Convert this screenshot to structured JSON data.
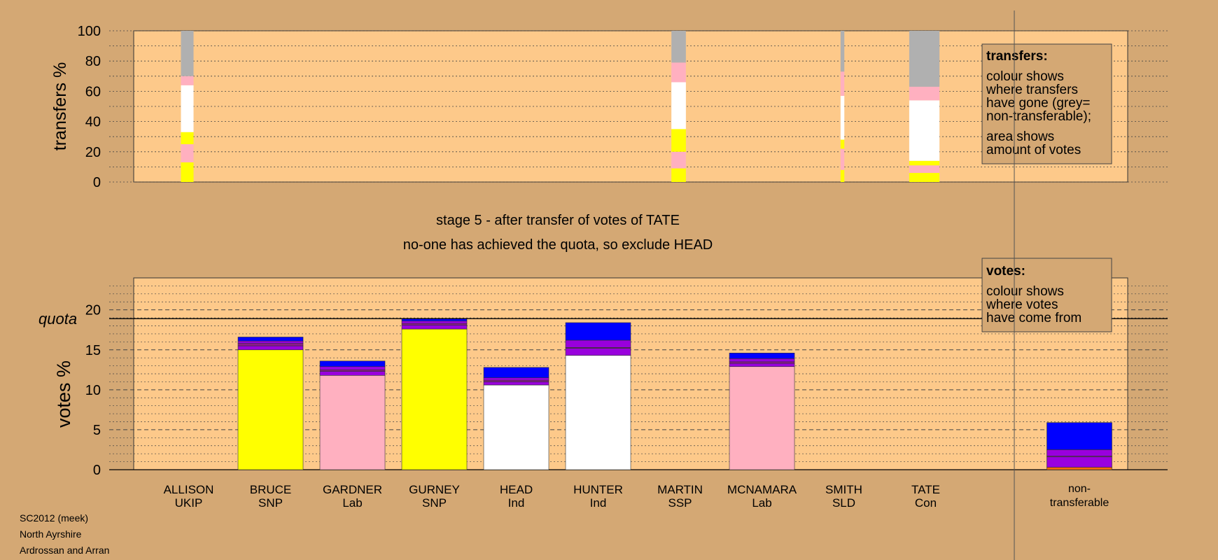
{
  "colors": {
    "page_bg": "#d4a874",
    "plot_bg": "#fdc98a",
    "SNP": "#ffff00",
    "Lab": "#ffb0c0",
    "Ind": "#ffffff",
    "UKIP": "#8a1c8a",
    "SSP": "#ff6a00",
    "SLD": "#ff7a30",
    "Con": "#0000ff",
    "misc_purple": "#9900dd",
    "non_transferable": "#b0b0b0"
  },
  "chart_data": [
    {
      "type": "bar",
      "subtype": "stacked",
      "ylabel": "transfers %",
      "ylim": [
        0,
        100
      ],
      "yticks": [
        0,
        20,
        40,
        60,
        80,
        100
      ],
      "note": "thin stacked columns showing where transferred votes went",
      "columns": [
        {
          "candidate": "ALLISON",
          "width_factor": 1.0,
          "segments": [
            {
              "value": 13,
              "color": "SNP"
            },
            {
              "value": 12,
              "color": "Lab"
            },
            {
              "value": 8,
              "color": "SNP"
            },
            {
              "value": 31,
              "color": "Ind"
            },
            {
              "value": 6,
              "color": "Lab"
            },
            {
              "value": 30,
              "color": "non_transferable"
            }
          ]
        },
        {
          "candidate": "MARTIN",
          "width_factor": 1.15,
          "segments": [
            {
              "value": 9,
              "color": "SNP"
            },
            {
              "value": 11,
              "color": "Lab"
            },
            {
              "value": 15,
              "color": "SNP"
            },
            {
              "value": 31,
              "color": "Ind"
            },
            {
              "value": 13,
              "color": "Lab"
            },
            {
              "value": 21,
              "color": "non_transferable"
            }
          ]
        },
        {
          "candidate": "SMITH",
          "width_factor": 0.3,
          "segments": [
            {
              "value": 8,
              "color": "SNP"
            },
            {
              "value": 14,
              "color": "Lab"
            },
            {
              "value": 6,
              "color": "SNP"
            },
            {
              "value": 29,
              "color": "Ind"
            },
            {
              "value": 16,
              "color": "Lab"
            },
            {
              "value": 27,
              "color": "non_transferable"
            }
          ]
        },
        {
          "candidate": "TATE",
          "width_factor": 2.4,
          "segments": [
            {
              "value": 6,
              "color": "SNP"
            },
            {
              "value": 5,
              "color": "Lab"
            },
            {
              "value": 3,
              "color": "SNP"
            },
            {
              "value": 40,
              "color": "Ind"
            },
            {
              "value": 9,
              "color": "Lab"
            },
            {
              "value": 37,
              "color": "non_transferable"
            }
          ]
        }
      ]
    },
    {
      "type": "bar",
      "subtype": "stacked",
      "ylabel": "votes %",
      "ylim": [
        0,
        24
      ],
      "yticks": [
        0,
        5,
        10,
        15,
        20
      ],
      "quota": 18.9,
      "quota_label": "quota",
      "categories": [
        {
          "name": "ALLISON",
          "party": "UKIP",
          "segments": []
        },
        {
          "name": "BRUCE",
          "party": "SNP",
          "segments": [
            {
              "value": 15.0,
              "color": "SNP"
            },
            {
              "value": 0.5,
              "color": "misc_purple"
            },
            {
              "value": 0.3,
              "color": "UKIP"
            },
            {
              "value": 0.3,
              "color": "misc_purple"
            },
            {
              "value": 0.5,
              "color": "Con"
            }
          ]
        },
        {
          "name": "GARDNER",
          "party": "Lab",
          "segments": [
            {
              "value": 11.8,
              "color": "Lab"
            },
            {
              "value": 0.5,
              "color": "misc_purple"
            },
            {
              "value": 0.2,
              "color": "UKIP"
            },
            {
              "value": 0.4,
              "color": "misc_purple"
            },
            {
              "value": 0.7,
              "color": "Con"
            }
          ]
        },
        {
          "name": "GURNEY",
          "party": "SNP",
          "segments": [
            {
              "value": 17.6,
              "color": "SNP"
            },
            {
              "value": 0.5,
              "color": "misc_purple"
            },
            {
              "value": 0.2,
              "color": "UKIP"
            },
            {
              "value": 0.3,
              "color": "misc_purple"
            },
            {
              "value": 0.3,
              "color": "Con"
            }
          ]
        },
        {
          "name": "HEAD",
          "party": "Ind",
          "segments": [
            {
              "value": 10.6,
              "color": "Ind"
            },
            {
              "value": 0.4,
              "color": "misc_purple"
            },
            {
              "value": 0.2,
              "color": "UKIP"
            },
            {
              "value": 0.3,
              "color": "misc_purple"
            },
            {
              "value": 1.3,
              "color": "Con"
            }
          ]
        },
        {
          "name": "HUNTER",
          "party": "Ind",
          "segments": [
            {
              "value": 14.3,
              "color": "Ind"
            },
            {
              "value": 0.9,
              "color": "misc_purple"
            },
            {
              "value": 0.1,
              "color": "UKIP"
            },
            {
              "value": 0.9,
              "color": "misc_purple"
            },
            {
              "value": 2.2,
              "color": "Con"
            }
          ]
        },
        {
          "name": "MARTIN",
          "party": "SSP",
          "segments": []
        },
        {
          "name": "MCNAMARA",
          "party": "Lab",
          "segments": [
            {
              "value": 12.9,
              "color": "Lab"
            },
            {
              "value": 0.4,
              "color": "misc_purple"
            },
            {
              "value": 0.2,
              "color": "UKIP"
            },
            {
              "value": 0.4,
              "color": "misc_purple"
            },
            {
              "value": 0.7,
              "color": "Con"
            }
          ]
        },
        {
          "name": "SMITH",
          "party": "SLD",
          "segments": []
        },
        {
          "name": "TATE",
          "party": "Con",
          "segments": []
        }
      ],
      "non_transferable": {
        "label_line1": "non-",
        "label_line2": "transferable",
        "segments": [
          {
            "value": 0.3,
            "color": "SSP"
          },
          {
            "value": 1.3,
            "color": "misc_purple"
          },
          {
            "value": 0.1,
            "color": "UKIP"
          },
          {
            "value": 0.8,
            "color": "misc_purple"
          },
          {
            "value": 3.4,
            "color": "Con"
          }
        ]
      }
    }
  ],
  "texts": {
    "stage_line1": "stage 5 - after transfer of votes of TATE",
    "stage_line2": "no-one has achieved the quota, so exclude HEAD",
    "legend_transfers": {
      "title": "transfers:",
      "lines": [
        "colour shows",
        "where transfers",
        "have gone (grey=",
        "non-transferable);"
      ],
      "lines2": [
        "area shows",
        "amount of votes"
      ]
    },
    "legend_votes": {
      "title": "votes:",
      "lines": [
        "colour shows",
        "where votes",
        "have come from"
      ]
    },
    "footer": [
      "SC2012 (meek)",
      "North Ayrshire",
      "Ardrossan and Arran"
    ]
  }
}
